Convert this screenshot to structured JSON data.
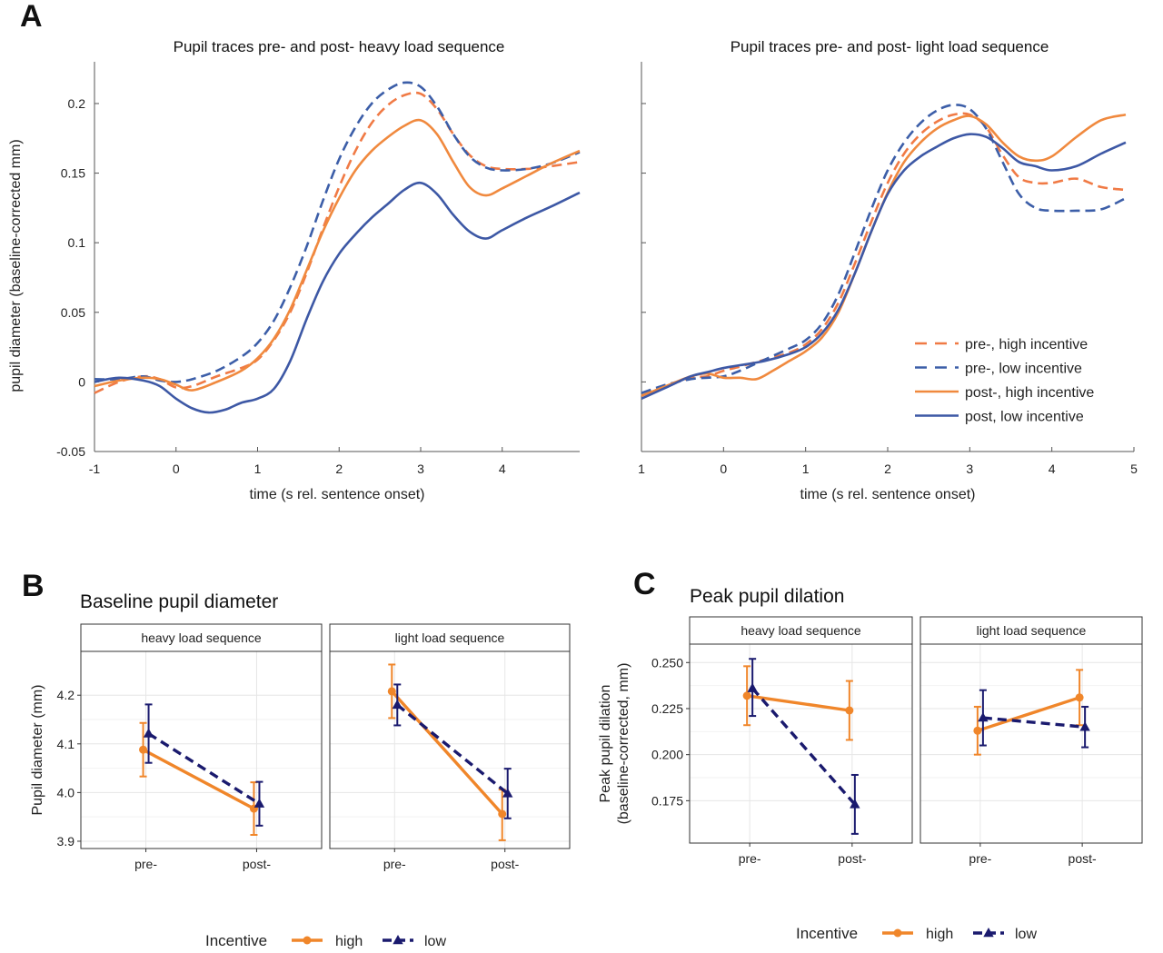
{
  "colors": {
    "high": "#f0862a",
    "low": "#1a1a6e",
    "pre_high_trace": "#f07a45",
    "pre_low_trace": "#3c5ea8",
    "post_high_trace": "#f0893e",
    "post_low_trace": "#3d58a5"
  },
  "panel_letters": [
    "A",
    "B",
    "C"
  ],
  "chart_data": [
    {
      "id": "A1",
      "type": "line",
      "title": "Pupil traces pre- and post- heavy load sequence",
      "xlabel": "time (s rel. sentence onset)",
      "ylabel": "pupil diameter (baseline-corrected mm)",
      "xlim": [
        -1,
        4.95
      ],
      "ylim": [
        -0.05,
        0.23
      ],
      "xticks": [
        "-1",
        "0",
        "1",
        "2",
        "3",
        "4"
      ],
      "yticks": [
        "-0.05",
        "0",
        "0.05",
        "0.1",
        "0.15",
        "0.2"
      ],
      "series": [
        {
          "key": "pre_high",
          "dashed": true,
          "x": [
            -1,
            -0.7,
            -0.4,
            -0.2,
            0,
            0.2,
            0.5,
            0.8,
            1.0,
            1.2,
            1.4,
            1.6,
            1.8,
            2.0,
            2.2,
            2.4,
            2.6,
            2.8,
            3.0,
            3.2,
            3.4,
            3.6,
            3.8,
            4.0,
            4.3,
            4.6,
            4.95
          ],
          "y": [
            -0.008,
            0.0,
            0.004,
            0.002,
            -0.004,
            -0.003,
            0.004,
            0.01,
            0.016,
            0.03,
            0.05,
            0.078,
            0.11,
            0.14,
            0.166,
            0.186,
            0.199,
            0.206,
            0.207,
            0.196,
            0.178,
            0.163,
            0.155,
            0.153,
            0.153,
            0.155,
            0.158
          ]
        },
        {
          "key": "pre_low",
          "dashed": true,
          "x": [
            -1,
            -0.7,
            -0.4,
            -0.2,
            0,
            0.2,
            0.5,
            0.8,
            1.0,
            1.2,
            1.4,
            1.6,
            1.8,
            2.0,
            2.2,
            2.4,
            2.6,
            2.8,
            3.0,
            3.2,
            3.4,
            3.6,
            3.8,
            4.0,
            4.3,
            4.6,
            4.95
          ],
          "y": [
            0.002,
            0.002,
            0.004,
            0.001,
            0.0,
            0.002,
            0.008,
            0.018,
            0.028,
            0.044,
            0.068,
            0.097,
            0.13,
            0.16,
            0.183,
            0.2,
            0.21,
            0.215,
            0.212,
            0.198,
            0.178,
            0.162,
            0.154,
            0.152,
            0.153,
            0.157,
            0.165
          ]
        },
        {
          "key": "post_high",
          "dashed": false,
          "x": [
            -1,
            -0.7,
            -0.4,
            -0.2,
            0,
            0.2,
            0.5,
            0.8,
            1.0,
            1.2,
            1.4,
            1.6,
            1.8,
            2.0,
            2.2,
            2.4,
            2.6,
            2.8,
            3.0,
            3.2,
            3.4,
            3.6,
            3.8,
            4.0,
            4.3,
            4.6,
            4.95
          ],
          "y": [
            -0.003,
            0.001,
            0.003,
            0.002,
            -0.002,
            -0.006,
            0.0,
            0.008,
            0.017,
            0.031,
            0.052,
            0.08,
            0.108,
            0.132,
            0.152,
            0.166,
            0.176,
            0.184,
            0.188,
            0.178,
            0.158,
            0.14,
            0.134,
            0.139,
            0.148,
            0.157,
            0.166
          ]
        },
        {
          "key": "post_low",
          "dashed": false,
          "x": [
            -1,
            -0.7,
            -0.4,
            -0.2,
            0,
            0.2,
            0.4,
            0.6,
            0.8,
            1.0,
            1.2,
            1.4,
            1.6,
            1.8,
            2.0,
            2.2,
            2.4,
            2.6,
            2.8,
            3.0,
            3.2,
            3.4,
            3.6,
            3.8,
            4.0,
            4.3,
            4.6,
            4.95
          ],
          "y": [
            0.0,
            0.003,
            0.001,
            -0.003,
            -0.012,
            -0.019,
            -0.022,
            -0.02,
            -0.015,
            -0.012,
            -0.005,
            0.015,
            0.045,
            0.072,
            0.092,
            0.106,
            0.118,
            0.128,
            0.138,
            0.143,
            0.135,
            0.12,
            0.108,
            0.103,
            0.109,
            0.118,
            0.126,
            0.136
          ]
        }
      ]
    },
    {
      "id": "A2",
      "type": "line",
      "title": "Pupil traces pre- and post- light load sequence",
      "xlabel": "time (s rel. sentence onset)",
      "xlim": [
        -1,
        5
      ],
      "ylim": [
        -0.05,
        0.23
      ],
      "xticks": [
        "1",
        "0",
        "1",
        "2",
        "3",
        "4",
        "5"
      ],
      "legend": {
        "placement": "right",
        "entries": [
          {
            "key": "pre_high",
            "label": "pre-, high incentive",
            "dashed": true
          },
          {
            "key": "pre_low",
            "label": "pre-, low incentive",
            "dashed": true
          },
          {
            "key": "post_high",
            "label": "post-, high incentive",
            "dashed": false
          },
          {
            "key": "post_low",
            "label": "post, low incentive",
            "dashed": false
          }
        ]
      },
      "series": [
        {
          "key": "pre_high",
          "dashed": true,
          "x": [
            -1,
            -0.7,
            -0.4,
            -0.2,
            0,
            0.2,
            0.5,
            0.8,
            1.0,
            1.2,
            1.4,
            1.6,
            1.8,
            2.0,
            2.2,
            2.4,
            2.6,
            2.8,
            3.0,
            3.2,
            3.4,
            3.6,
            3.8,
            4.0,
            4.3,
            4.6,
            4.9
          ],
          "y": [
            -0.01,
            -0.003,
            0.003,
            0.004,
            0.008,
            0.011,
            0.016,
            0.021,
            0.027,
            0.038,
            0.057,
            0.085,
            0.115,
            0.143,
            0.164,
            0.178,
            0.187,
            0.192,
            0.192,
            0.183,
            0.163,
            0.147,
            0.143,
            0.143,
            0.146,
            0.14,
            0.138
          ]
        },
        {
          "key": "pre_low",
          "dashed": true,
          "x": [
            -1,
            -0.7,
            -0.4,
            -0.2,
            0,
            0.2,
            0.5,
            0.8,
            1.0,
            1.2,
            1.4,
            1.6,
            1.8,
            2.0,
            2.2,
            2.4,
            2.6,
            2.8,
            3.0,
            3.2,
            3.4,
            3.6,
            3.8,
            4.0,
            4.3,
            4.6,
            4.9
          ],
          "y": [
            -0.008,
            -0.002,
            0.002,
            0.003,
            0.004,
            0.008,
            0.016,
            0.024,
            0.03,
            0.042,
            0.063,
            0.093,
            0.124,
            0.152,
            0.172,
            0.186,
            0.195,
            0.199,
            0.196,
            0.182,
            0.158,
            0.135,
            0.125,
            0.123,
            0.123,
            0.124,
            0.132
          ]
        },
        {
          "key": "post_high",
          "dashed": false,
          "x": [
            -1,
            -0.7,
            -0.4,
            -0.2,
            0,
            0.2,
            0.4,
            0.6,
            0.8,
            1.0,
            1.2,
            1.4,
            1.6,
            1.8,
            2.0,
            2.2,
            2.4,
            2.6,
            2.8,
            3.0,
            3.2,
            3.4,
            3.6,
            3.8,
            4.0,
            4.3,
            4.6,
            4.9
          ],
          "y": [
            -0.01,
            -0.003,
            0.004,
            0.006,
            0.003,
            0.003,
            0.002,
            0.008,
            0.015,
            0.022,
            0.032,
            0.05,
            0.078,
            0.108,
            0.136,
            0.158,
            0.172,
            0.182,
            0.188,
            0.191,
            0.185,
            0.172,
            0.162,
            0.159,
            0.162,
            0.176,
            0.188,
            0.192
          ]
        },
        {
          "key": "post_low",
          "dashed": false,
          "x": [
            -1,
            -0.7,
            -0.4,
            -0.2,
            0,
            0.2,
            0.5,
            0.8,
            1.0,
            1.2,
            1.4,
            1.6,
            1.8,
            2.0,
            2.2,
            2.4,
            2.6,
            2.8,
            3.0,
            3.2,
            3.4,
            3.6,
            3.8,
            4.0,
            4.3,
            4.6,
            4.9
          ],
          "y": [
            -0.012,
            -0.004,
            0.004,
            0.007,
            0.01,
            0.012,
            0.015,
            0.02,
            0.025,
            0.035,
            0.052,
            0.078,
            0.108,
            0.135,
            0.152,
            0.162,
            0.169,
            0.175,
            0.178,
            0.176,
            0.168,
            0.158,
            0.155,
            0.152,
            0.155,
            0.164,
            0.172
          ]
        }
      ]
    },
    {
      "id": "B",
      "type": "line",
      "title": "Baseline pupil diameter",
      "ylabel": "Pupil diameter (mm)",
      "ylim": [
        3.885,
        4.29
      ],
      "yticks": [
        "3.9",
        "4.0",
        "4.1",
        "4.2"
      ],
      "categories": [
        "pre-",
        "post-"
      ],
      "facets": [
        {
          "label": "heavy load sequence",
          "series": [
            {
              "name": "high",
              "values": [
                4.088,
                3.967
              ],
              "lo": [
                4.033,
                3.913
              ],
              "hi": [
                4.143,
                4.021
              ]
            },
            {
              "name": "low",
              "values": [
                4.121,
                3.977
              ],
              "lo": [
                4.061,
                3.932
              ],
              "hi": [
                4.181,
                4.022
              ]
            }
          ]
        },
        {
          "label": "light load sequence",
          "series": [
            {
              "name": "high",
              "values": [
                4.208,
                3.956
              ],
              "lo": [
                4.153,
                3.902
              ],
              "hi": [
                4.263,
                4.006
              ]
            },
            {
              "name": "low",
              "values": [
                4.18,
                3.998
              ],
              "lo": [
                4.138,
                3.947
              ],
              "hi": [
                4.222,
                4.049
              ]
            }
          ]
        }
      ],
      "legend": {
        "title": "Incentive",
        "entries": [
          "high",
          "low"
        ],
        "placement": "bottom"
      }
    },
    {
      "id": "C",
      "type": "line",
      "title": "Peak pupil dilation",
      "ylabel": "Peak pupil dilation\n(baseline-corrected, mm)",
      "ylim": [
        0.152,
        0.26
      ],
      "yticks": [
        "0.175",
        "0.200",
        "0.225",
        "0.250"
      ],
      "categories": [
        "pre-",
        "post-"
      ],
      "facets": [
        {
          "label": "heavy load sequence",
          "series": [
            {
              "name": "high",
              "values": [
                0.232,
                0.224
              ],
              "lo": [
                0.216,
                0.208
              ],
              "hi": [
                0.248,
                0.24
              ]
            },
            {
              "name": "low",
              "values": [
                0.236,
                0.173
              ],
              "lo": [
                0.221,
                0.157
              ],
              "hi": [
                0.252,
                0.189
              ]
            }
          ]
        },
        {
          "label": "light load sequence",
          "series": [
            {
              "name": "high",
              "values": [
                0.213,
                0.231
              ],
              "lo": [
                0.2,
                0.216
              ],
              "hi": [
                0.226,
                0.246
              ]
            },
            {
              "name": "low",
              "values": [
                0.22,
                0.215
              ],
              "lo": [
                0.205,
                0.204
              ],
              "hi": [
                0.235,
                0.226
              ]
            }
          ]
        }
      ],
      "legend": {
        "title": "Incentive",
        "entries": [
          "high",
          "low"
        ],
        "placement": "bottom"
      }
    }
  ]
}
